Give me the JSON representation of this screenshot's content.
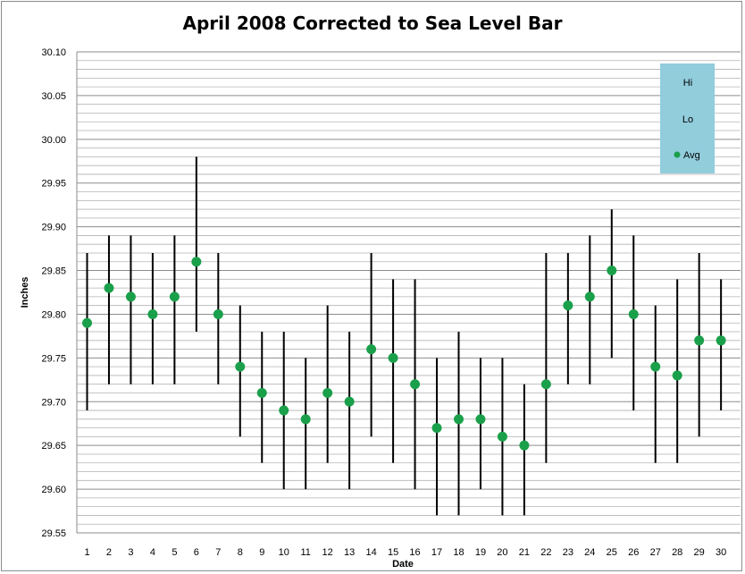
{
  "chart_data": {
    "type": "stock-hi-lo-avg",
    "title": "April 2008 Corrected to Sea Level Bar",
    "xlabel": "Date",
    "ylabel": "Inches",
    "ylim": [
      29.55,
      30.1
    ],
    "ytick_step": 0.05,
    "ytick_labels": [
      "29.55",
      "29.60",
      "29.65",
      "29.70",
      "29.75",
      "29.80",
      "29.85",
      "29.90",
      "29.95",
      "30.00",
      "30.05",
      "30.10"
    ],
    "grid": true,
    "legend": {
      "placement": "top-right",
      "entries": [
        "Hi",
        "Lo",
        "Avg"
      ]
    },
    "colors": {
      "range_line": "#000000",
      "avg_marker": "#1aa04a",
      "legend_bg": "#92cddc",
      "grid": "#a6a6a6"
    },
    "categories": [
      1,
      2,
      3,
      4,
      5,
      6,
      7,
      8,
      9,
      10,
      11,
      12,
      13,
      14,
      15,
      16,
      17,
      18,
      19,
      20,
      21,
      22,
      23,
      24,
      25,
      26,
      27,
      28,
      29,
      30
    ],
    "series": [
      {
        "name": "Hi",
        "values": [
          29.87,
          29.89,
          29.89,
          29.87,
          29.89,
          29.98,
          29.87,
          29.81,
          29.78,
          29.78,
          29.75,
          29.81,
          29.78,
          29.87,
          29.84,
          29.84,
          29.75,
          29.78,
          29.75,
          29.75,
          29.72,
          29.87,
          29.87,
          29.89,
          29.92,
          29.89,
          29.81,
          29.84,
          29.87,
          29.84
        ]
      },
      {
        "name": "Lo",
        "values": [
          29.69,
          29.72,
          29.72,
          29.72,
          29.72,
          29.78,
          29.72,
          29.66,
          29.63,
          29.6,
          29.6,
          29.63,
          29.6,
          29.66,
          29.63,
          29.6,
          29.57,
          29.57,
          29.6,
          29.57,
          29.57,
          29.63,
          29.72,
          29.72,
          29.75,
          29.69,
          29.63,
          29.63,
          29.66,
          29.69
        ]
      },
      {
        "name": "Avg",
        "values": [
          29.79,
          29.83,
          29.82,
          29.8,
          29.82,
          29.86,
          29.8,
          29.74,
          29.71,
          29.69,
          29.68,
          29.71,
          29.7,
          29.76,
          29.75,
          29.72,
          29.67,
          29.68,
          29.68,
          29.66,
          29.65,
          29.72,
          29.81,
          29.82,
          29.85,
          29.8,
          29.74,
          29.73,
          29.77,
          29.77
        ]
      }
    ]
  }
}
